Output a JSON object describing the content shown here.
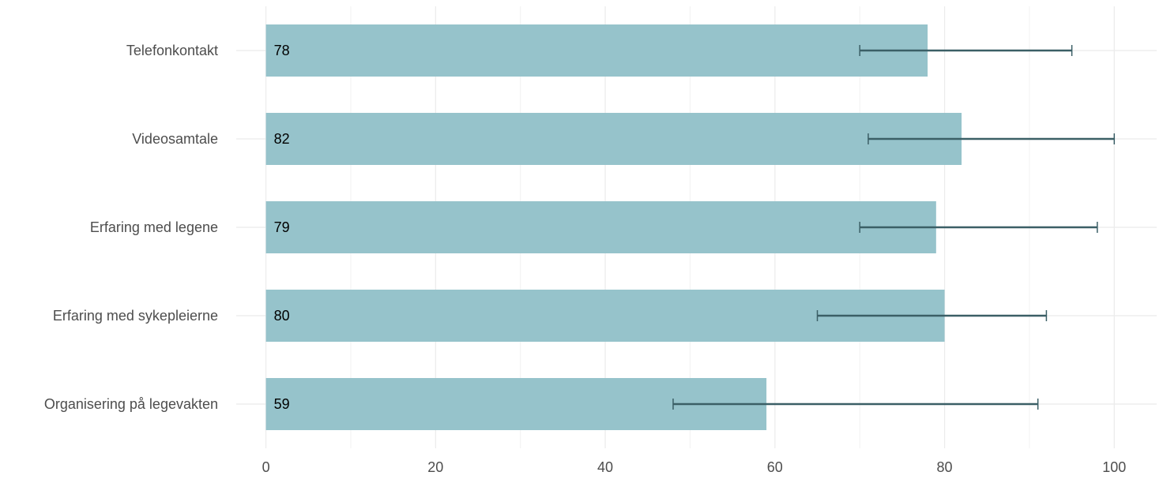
{
  "chart_data": {
    "type": "bar",
    "orientation": "horizontal",
    "categories": [
      "Telefonkontakt",
      "Videosamtale",
      "Erfaring med legene",
      "Erfaring med sykepleierne",
      "Organisering på legevakten"
    ],
    "values": [
      78,
      82,
      79,
      80,
      59
    ],
    "error_low": [
      70,
      71,
      70,
      65,
      48
    ],
    "error_high": [
      95,
      100,
      98,
      92,
      91
    ],
    "color": "#96c3cb",
    "error_color": "#3b5f66",
    "xlim": [
      -3.5,
      105
    ],
    "xticks": [
      0,
      20,
      40,
      60,
      80,
      100
    ],
    "minor_xticks": [
      10,
      30,
      50,
      70,
      90
    ],
    "grid": true
  }
}
